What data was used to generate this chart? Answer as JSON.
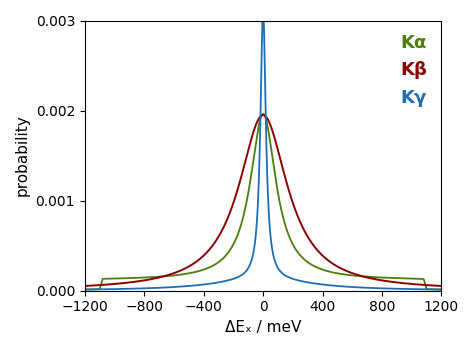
{
  "title": "",
  "xlabel": "ΔEₓ / meV",
  "ylabel": "probability",
  "xlim": [
    -1200,
    1200
  ],
  "ylim": [
    0,
    0.003
  ],
  "yticks": [
    0,
    0.001,
    0.002,
    0.003
  ],
  "xticks": [
    -1200,
    -800,
    -400,
    0,
    400,
    800,
    1200
  ],
  "legend": [
    {
      "label": "Kα",
      "color": "#4d7c0f"
    },
    {
      "label": "Kβ",
      "color": "#8b0000"
    },
    {
      "label": "Kγ",
      "color": "#1e6eb5"
    }
  ],
  "background_color": "#ffffff",
  "ka": {
    "gamma_lorentz": 105,
    "amplitude_lorentz": 0.00185,
    "flat_level": 0.000115,
    "flat_cutoff": 1080,
    "flat_edge_width": 20,
    "color": "#4d7c0f"
  },
  "kb": {
    "gamma_lorentz": 200,
    "amplitude_lorentz": 0.00195,
    "color": "#8b0000"
  },
  "kg": {
    "gamma_lorentz": 22,
    "amplitude_lorentz": 0.003,
    "gamma_wide": 400,
    "amplitude_wide": 0.00012,
    "color": "#1e6eb5"
  }
}
